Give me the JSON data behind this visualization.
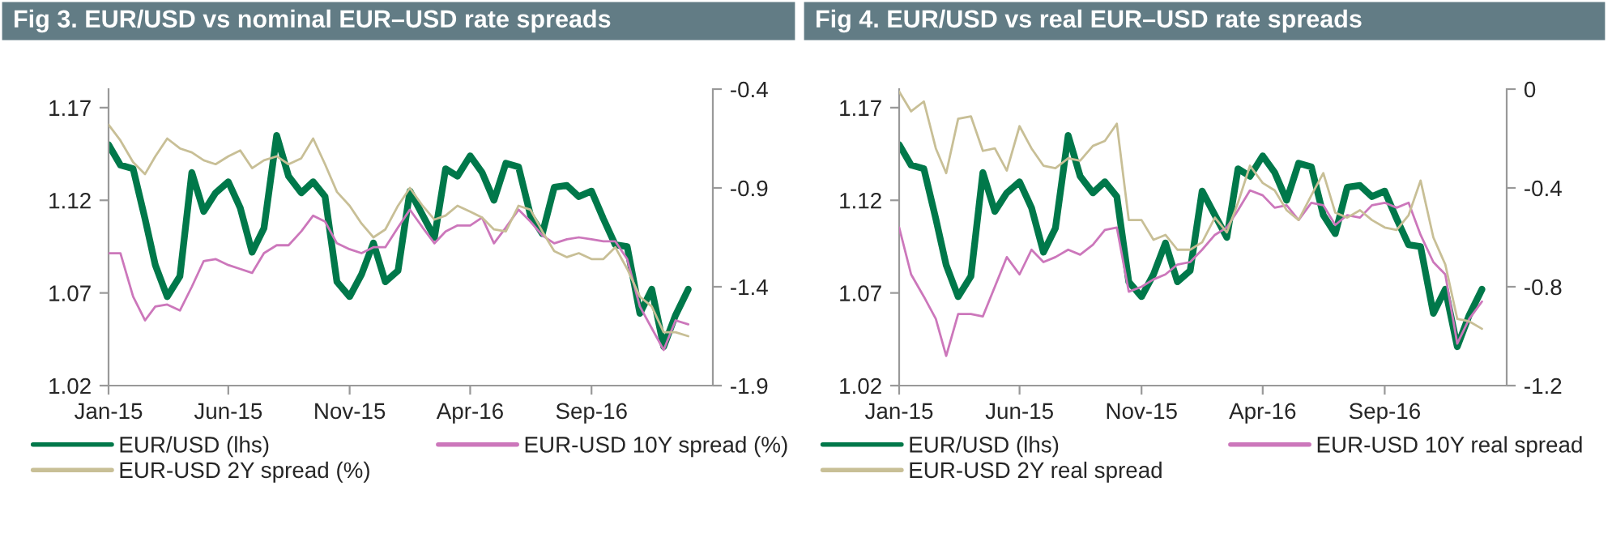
{
  "chart_data": [
    {
      "type": "line",
      "title": "Fig 3. EUR/USD vs nominal EUR–USD rate spreads",
      "x": [
        "2015-01-01",
        "2015-01-16",
        "2015-02-01",
        "2015-02-16",
        "2015-03-01",
        "2015-03-16",
        "2015-04-01",
        "2015-04-16",
        "2015-05-01",
        "2015-05-16",
        "2015-06-01",
        "2015-06-16",
        "2015-07-01",
        "2015-07-16",
        "2015-08-01",
        "2015-08-16",
        "2015-09-01",
        "2015-09-16",
        "2015-10-01",
        "2015-10-16",
        "2015-11-01",
        "2015-11-16",
        "2015-12-01",
        "2015-12-16",
        "2016-01-01",
        "2016-01-16",
        "2016-02-01",
        "2016-02-16",
        "2016-03-01",
        "2016-03-16",
        "2016-04-01",
        "2016-04-16",
        "2016-05-01",
        "2016-05-16",
        "2016-06-01",
        "2016-06-16",
        "2016-07-01",
        "2016-07-16",
        "2016-08-01",
        "2016-08-16",
        "2016-09-01",
        "2016-09-16",
        "2016-10-01",
        "2016-10-16",
        "2016-11-01",
        "2016-11-16",
        "2016-12-01",
        "2016-12-16",
        "2017-01-01"
      ],
      "series": [
        {
          "name": "EUR/USD (lhs)",
          "color": "#00784a",
          "values": [
            1.15,
            1.139,
            1.137,
            1.11,
            1.085,
            1.068,
            1.079,
            1.135,
            1.114,
            1.124,
            1.13,
            1.116,
            1.092,
            1.105,
            1.155,
            1.133,
            1.124,
            1.13,
            1.122,
            1.076,
            1.068,
            1.08,
            1.097,
            1.076,
            1.082,
            1.125,
            1.112,
            1.1,
            1.137,
            1.133,
            1.144,
            1.135,
            1.12,
            1.14,
            1.138,
            1.112,
            1.102,
            1.127,
            1.128,
            1.122,
            1.125,
            1.11,
            1.096,
            1.095,
            1.059,
            1.072,
            1.041,
            1.058,
            1.072
          ]
        },
        {
          "name": "EUR-USD 10Y spread (%)",
          "color": "#cc77bb",
          "axis": "y2",
          "values": [
            -1.23,
            -1.23,
            -1.45,
            -1.57,
            -1.5,
            -1.49,
            -1.52,
            -1.4,
            -1.27,
            -1.26,
            -1.29,
            -1.31,
            -1.33,
            -1.23,
            -1.19,
            -1.19,
            -1.12,
            -1.04,
            -1.07,
            -1.18,
            -1.21,
            -1.23,
            -1.2,
            -1.2,
            -1.1,
            -1.01,
            -1.1,
            -1.18,
            -1.12,
            -1.09,
            -1.09,
            -1.05,
            -1.18,
            -1.1,
            -1.01,
            -1.07,
            -1.14,
            -1.18,
            -1.16,
            -1.15,
            -1.16,
            -1.17,
            -1.17,
            -1.26,
            -1.5,
            -1.61,
            -1.72,
            -1.57,
            -1.59
          ]
        },
        {
          "name": "EUR-USD 2Y spread (%)",
          "color": "#c8bf96",
          "axis": "y2",
          "values": [
            -0.58,
            -0.66,
            -0.77,
            -0.83,
            -0.74,
            -0.65,
            -0.7,
            -0.72,
            -0.76,
            -0.78,
            -0.74,
            -0.71,
            -0.8,
            -0.76,
            -0.74,
            -0.78,
            -0.75,
            -0.65,
            -0.78,
            -0.92,
            -0.99,
            -1.08,
            -1.15,
            -1.11,
            -0.99,
            -0.9,
            -0.99,
            -1.06,
            -1.04,
            -0.99,
            -1.02,
            -1.05,
            -1.11,
            -1.12,
            -0.99,
            -1.01,
            -1.12,
            -1.22,
            -1.25,
            -1.23,
            -1.26,
            -1.26,
            -1.2,
            -1.31,
            -1.45,
            -1.5,
            -1.63,
            -1.63,
            -1.65
          ]
        }
      ],
      "xlim": [
        "2015-01-01",
        "2017-02-01"
      ],
      "xticks": [
        {
          "value": "2015-01-01",
          "label": "Jan-15"
        },
        {
          "value": "2015-06-01",
          "label": "Jun-15"
        },
        {
          "value": "2015-11-01",
          "label": "Nov-15"
        },
        {
          "value": "2016-04-01",
          "label": "Apr-16"
        },
        {
          "value": "2016-09-01",
          "label": "Sep-16"
        }
      ],
      "ylim": [
        1.02,
        1.18
      ],
      "yticks": [
        1.02,
        1.07,
        1.12,
        1.17
      ],
      "y2lim": [
        -1.9,
        -0.4
      ],
      "y2ticks": [
        -1.9,
        -1.4,
        -0.9,
        -0.4
      ],
      "legend": "bottom"
    },
    {
      "type": "line",
      "title": "Fig 4. EUR/USD vs real EUR–USD rate spreads",
      "x": [
        "2015-01-01",
        "2015-01-16",
        "2015-02-01",
        "2015-02-16",
        "2015-03-01",
        "2015-03-16",
        "2015-04-01",
        "2015-04-16",
        "2015-05-01",
        "2015-05-16",
        "2015-06-01",
        "2015-06-16",
        "2015-07-01",
        "2015-07-16",
        "2015-08-01",
        "2015-08-16",
        "2015-09-01",
        "2015-09-16",
        "2015-10-01",
        "2015-10-16",
        "2015-11-01",
        "2015-11-16",
        "2015-12-01",
        "2015-12-16",
        "2016-01-01",
        "2016-01-16",
        "2016-02-01",
        "2016-02-16",
        "2016-03-01",
        "2016-03-16",
        "2016-04-01",
        "2016-04-16",
        "2016-05-01",
        "2016-05-16",
        "2016-06-01",
        "2016-06-16",
        "2016-07-01",
        "2016-07-16",
        "2016-08-01",
        "2016-08-16",
        "2016-09-01",
        "2016-09-16",
        "2016-10-01",
        "2016-10-16",
        "2016-11-01",
        "2016-11-16",
        "2016-12-01",
        "2016-12-16",
        "2017-01-01"
      ],
      "series": [
        {
          "name": "EUR/USD (lhs)",
          "color": "#00784a",
          "values": [
            1.15,
            1.139,
            1.137,
            1.11,
            1.085,
            1.068,
            1.079,
            1.135,
            1.114,
            1.124,
            1.13,
            1.116,
            1.092,
            1.105,
            1.155,
            1.133,
            1.124,
            1.13,
            1.122,
            1.076,
            1.068,
            1.08,
            1.097,
            1.076,
            1.082,
            1.125,
            1.112,
            1.1,
            1.137,
            1.133,
            1.144,
            1.135,
            1.12,
            1.14,
            1.138,
            1.112,
            1.102,
            1.127,
            1.128,
            1.122,
            1.125,
            1.11,
            1.096,
            1.095,
            1.059,
            1.072,
            1.041,
            1.058,
            1.072
          ]
        },
        {
          "name": "EUR-USD 10Y real spread",
          "color": "#cc77bb",
          "axis": "y2",
          "values": [
            -0.56,
            -0.75,
            -0.84,
            -0.93,
            -1.08,
            -0.91,
            -0.91,
            -0.92,
            -0.8,
            -0.68,
            -0.75,
            -0.65,
            -0.7,
            -0.68,
            -0.65,
            -0.67,
            -0.63,
            -0.57,
            -0.56,
            -0.82,
            -0.8,
            -0.77,
            -0.75,
            -0.71,
            -0.7,
            -0.65,
            -0.59,
            -0.56,
            -0.49,
            -0.41,
            -0.43,
            -0.48,
            -0.47,
            -0.53,
            -0.46,
            -0.47,
            -0.55,
            -0.51,
            -0.52,
            -0.47,
            -0.46,
            -0.48,
            -0.46,
            -0.59,
            -0.7,
            -0.75,
            -1.03,
            -0.93,
            -0.86
          ]
        },
        {
          "name": "EUR-USD 2Y real spread",
          "color": "#c8bf96",
          "axis": "y2",
          "values": [
            -0.01,
            -0.09,
            -0.05,
            -0.24,
            -0.34,
            -0.12,
            -0.11,
            -0.25,
            -0.24,
            -0.33,
            -0.15,
            -0.24,
            -0.31,
            -0.32,
            -0.28,
            -0.29,
            -0.23,
            -0.21,
            -0.14,
            -0.53,
            -0.53,
            -0.61,
            -0.59,
            -0.65,
            -0.65,
            -0.62,
            -0.52,
            -0.58,
            -0.46,
            -0.31,
            -0.38,
            -0.41,
            -0.49,
            -0.53,
            -0.43,
            -0.34,
            -0.5,
            -0.52,
            -0.49,
            -0.53,
            -0.56,
            -0.57,
            -0.51,
            -0.37,
            -0.6,
            -0.71,
            -0.93,
            -0.94,
            -0.97
          ]
        }
      ],
      "xlim": [
        "2015-01-01",
        "2017-02-01"
      ],
      "xticks": [
        {
          "value": "2015-01-01",
          "label": "Jan-15"
        },
        {
          "value": "2015-06-01",
          "label": "Jun-15"
        },
        {
          "value": "2015-11-01",
          "label": "Nov-15"
        },
        {
          "value": "2016-04-01",
          "label": "Apr-16"
        },
        {
          "value": "2016-09-01",
          "label": "Sep-16"
        }
      ],
      "ylim": [
        1.02,
        1.18
      ],
      "yticks": [
        1.02,
        1.07,
        1.12,
        1.17
      ],
      "y2lim": [
        -1.2,
        0
      ],
      "y2ticks": [
        -1.2,
        -0.8,
        -0.4,
        0
      ],
      "legend": "bottom"
    }
  ]
}
